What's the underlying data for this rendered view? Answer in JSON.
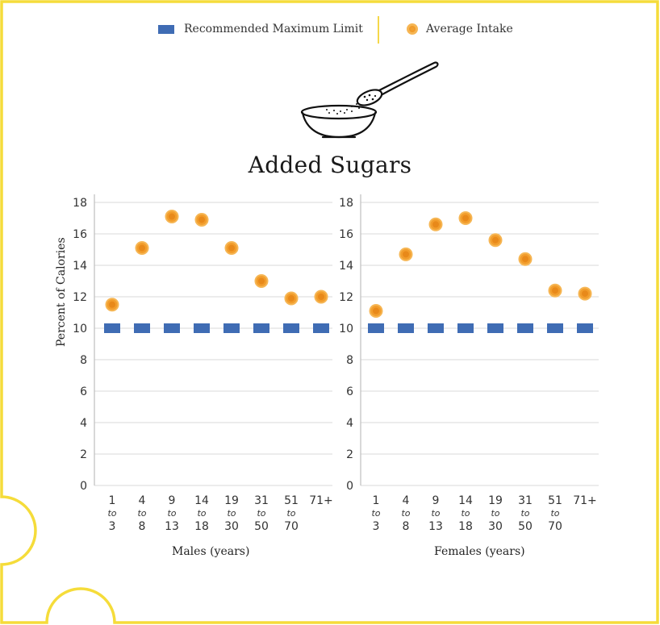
{
  "legend": {
    "limit_label": "Recommended Maximum Limit",
    "intake_label": "Average Intake"
  },
  "colors": {
    "limit": "#3f6cb4",
    "intake_fill": "#f29d2c",
    "intake_ring": "#f6b654",
    "frame": "#f5dc3a",
    "grid": "#d9d9d9"
  },
  "illustration": {
    "icon": "sugar-spoon-bowl-icon"
  },
  "chart_data": [
    {
      "type": "scatter",
      "title": "Added Sugars",
      "panel": "Males",
      "xlabel": "Males (years)",
      "ylabel": "Percent of Calories",
      "ylim": [
        0,
        18
      ],
      "yticks": [
        0,
        2,
        4,
        6,
        8,
        10,
        12,
        14,
        16,
        18
      ],
      "grid": true,
      "categories": [
        {
          "top": "1",
          "mid": "to",
          "bot": "3"
        },
        {
          "top": "4",
          "mid": "to",
          "bot": "8"
        },
        {
          "top": "9",
          "mid": "to",
          "bot": "13"
        },
        {
          "top": "14",
          "mid": "to",
          "bot": "18"
        },
        {
          "top": "19",
          "mid": "to",
          "bot": "30"
        },
        {
          "top": "31",
          "mid": "to",
          "bot": "50"
        },
        {
          "top": "51",
          "mid": "to",
          "bot": "70"
        },
        {
          "top": "71+",
          "mid": "",
          "bot": ""
        }
      ],
      "series": [
        {
          "name": "Recommended Maximum Limit",
          "values": [
            10,
            10,
            10,
            10,
            10,
            10,
            10,
            10
          ]
        },
        {
          "name": "Average Intake",
          "values": [
            11.5,
            15.1,
            17.1,
            16.9,
            15.1,
            13.0,
            11.9,
            12.0
          ]
        }
      ]
    },
    {
      "type": "scatter",
      "panel": "Females",
      "xlabel": "Females (years)",
      "ylim": [
        0,
        18
      ],
      "yticks": [
        0,
        2,
        4,
        6,
        8,
        10,
        12,
        14,
        16,
        18
      ],
      "grid": true,
      "categories": [
        {
          "top": "1",
          "mid": "to",
          "bot": "3"
        },
        {
          "top": "4",
          "mid": "to",
          "bot": "8"
        },
        {
          "top": "9",
          "mid": "to",
          "bot": "13"
        },
        {
          "top": "14",
          "mid": "to",
          "bot": "18"
        },
        {
          "top": "19",
          "mid": "to",
          "bot": "30"
        },
        {
          "top": "31",
          "mid": "to",
          "bot": "50"
        },
        {
          "top": "51",
          "mid": "to",
          "bot": "70"
        },
        {
          "top": "71+",
          "mid": "",
          "bot": ""
        }
      ],
      "series": [
        {
          "name": "Recommended Maximum Limit",
          "values": [
            10,
            10,
            10,
            10,
            10,
            10,
            10,
            10
          ]
        },
        {
          "name": "Average Intake",
          "values": [
            11.1,
            14.7,
            16.6,
            17.0,
            15.6,
            14.4,
            12.4,
            12.2
          ]
        }
      ]
    }
  ]
}
